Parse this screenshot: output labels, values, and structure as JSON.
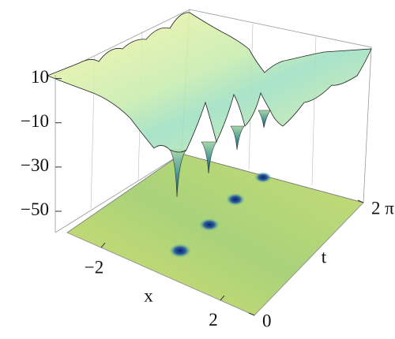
{
  "chart_data": {
    "type": "surface3d",
    "xlabel": "x",
    "ylabel": "t",
    "xlim": [
      -3.14,
      3.14
    ],
    "xticks": [
      {
        "value": -2,
        "label": "−2"
      },
      2
    ],
    "ylim": [
      0,
      6.283
    ],
    "yticks": [
      0,
      {
        "value": 6.283,
        "label": "2 π"
      }
    ],
    "zlim": [
      -60,
      12
    ],
    "zticks": [
      10,
      {
        "value": -10,
        "label": "−10"
      },
      {
        "value": -30,
        "label": "−30"
      },
      {
        "value": -50,
        "label": "−50"
      }
    ]
  }
}
